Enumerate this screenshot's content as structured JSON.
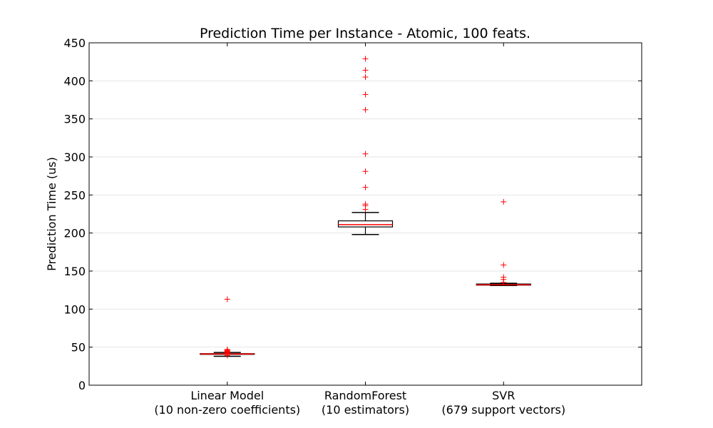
{
  "chart_data": {
    "type": "box",
    "title": "Prediction Time per Instance - Atomic, 100 feats.",
    "xlabel": "",
    "ylabel": "Prediction Time (us)",
    "ylim": [
      0,
      450
    ],
    "yticks": [
      0,
      50,
      100,
      150,
      200,
      250,
      300,
      350,
      400,
      450
    ],
    "grid": "horizontal",
    "categories": [
      {
        "line1": "Linear Model",
        "line2": "(10 non-zero coefficients)"
      },
      {
        "line1": "RandomForest",
        "line2": "(10 estimators)"
      },
      {
        "line1": "SVR",
        "line2": "(679 support vectors)"
      }
    ],
    "boxes": [
      {
        "whisker_low": 38,
        "q1": 40.5,
        "median": 41,
        "q3": 41.5,
        "whisker_high": 43,
        "outliers": [
          113,
          47,
          46,
          45,
          44,
          43.5,
          42.5,
          42,
          39
        ]
      },
      {
        "whisker_low": 198,
        "q1": 208,
        "median": 211,
        "q3": 216,
        "whisker_high": 227,
        "outliers": [
          429,
          414,
          405,
          382,
          362,
          304,
          281,
          260,
          238,
          236,
          231
        ]
      },
      {
        "whisker_low": 131,
        "q1": 131.5,
        "median": 132,
        "q3": 133,
        "whisker_high": 134,
        "outliers": [
          241,
          158,
          142,
          139,
          135
        ]
      }
    ],
    "colors": {
      "box": "#000000",
      "median": "#ff0000",
      "outlier": "#ff0000",
      "grid": "#e6e6e6"
    }
  }
}
